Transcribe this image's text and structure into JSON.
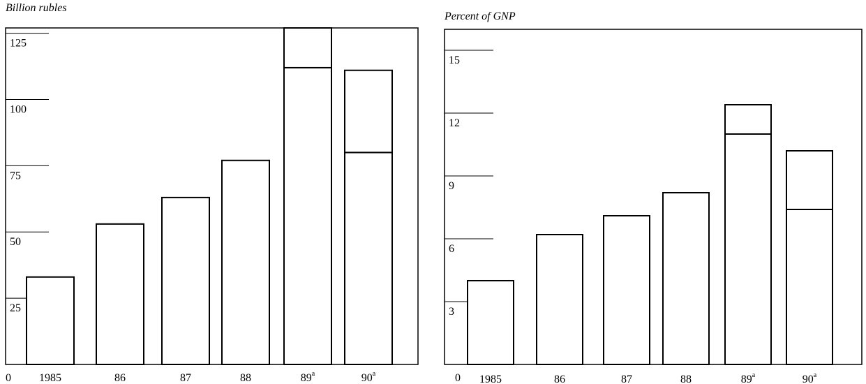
{
  "chart_data": [
    {
      "type": "bar",
      "title": "Billion rubles",
      "categories": [
        "1985",
        "86",
        "87",
        "88",
        "89",
        "90"
      ],
      "category_superscripts": [
        "",
        "",
        "",
        "",
        "a",
        "a"
      ],
      "zero_label": "0",
      "series": [
        {
          "values": [
            33,
            53,
            63,
            77,
            112,
            80
          ]
        },
        {
          "values": [
            0,
            0,
            0,
            0,
            15,
            31
          ]
        }
      ],
      "yticks": [
        "25",
        "50",
        "75",
        "100",
        "125"
      ],
      "ylim": [
        0,
        127
      ],
      "grid": false
    },
    {
      "type": "bar",
      "title": "Percent of GNP",
      "categories": [
        "1985",
        "86",
        "87",
        "88",
        "89",
        "90"
      ],
      "category_superscripts": [
        "",
        "",
        "",
        "",
        "a",
        "a"
      ],
      "zero_label": "0",
      "series": [
        {
          "values": [
            4.0,
            6.2,
            7.1,
            8.2,
            11.0,
            7.4
          ]
        },
        {
          "values": [
            0,
            0,
            0,
            0,
            1.4,
            2.8
          ]
        }
      ],
      "yticks": [
        "3",
        "6",
        "9",
        "12",
        "15"
      ],
      "ylim": [
        0,
        16
      ],
      "grid": false
    }
  ]
}
